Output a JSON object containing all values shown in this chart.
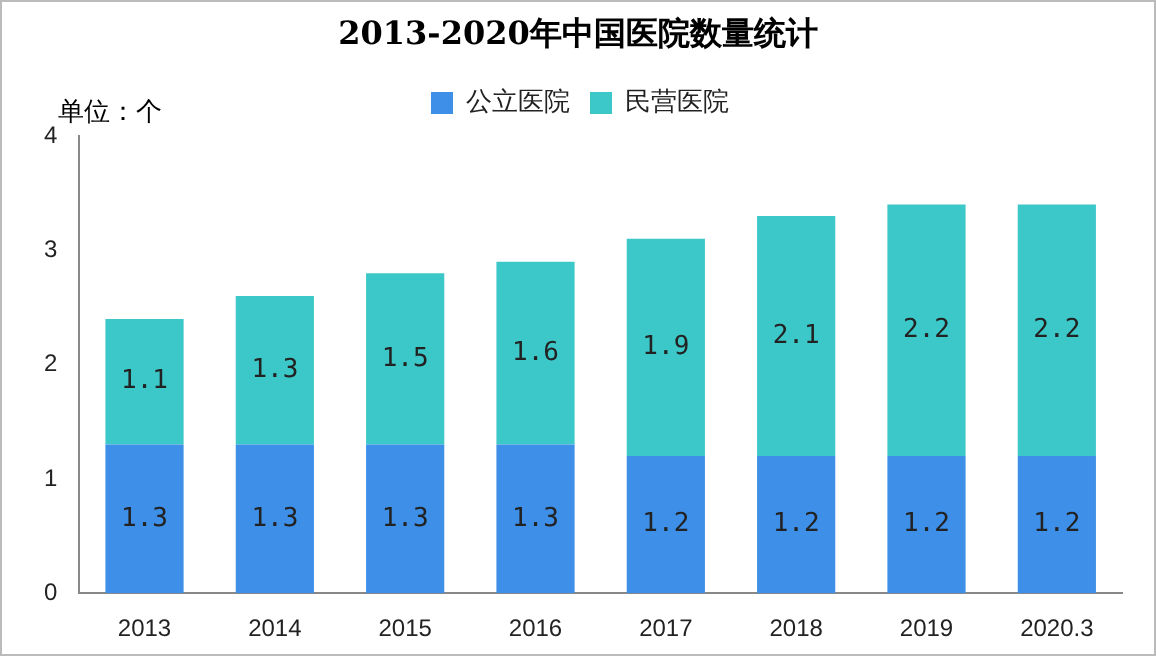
{
  "chart_data": {
    "type": "bar",
    "title": "2013-2020年中国医院数量统计",
    "annotations": [
      "单位：个"
    ],
    "categories": [
      "2013",
      "2014",
      "2015",
      "2016",
      "2017",
      "2018",
      "2019",
      "2020.3"
    ],
    "series": [
      {
        "name": "公立医院",
        "color": "#3d8fe8",
        "values": [
          1.3,
          1.3,
          1.3,
          1.3,
          1.2,
          1.2,
          1.2,
          1.2
        ]
      },
      {
        "name": "民营医院",
        "color": "#3cc8c8",
        "values": [
          1.1,
          1.3,
          1.5,
          1.6,
          1.9,
          2.1,
          2.2,
          2.2
        ]
      }
    ],
    "stacked": true,
    "ylim": [
      0,
      4
    ],
    "yticks": [
      0,
      1,
      2,
      3,
      4
    ],
    "grid": false,
    "legend": "top",
    "data_labels": true
  }
}
